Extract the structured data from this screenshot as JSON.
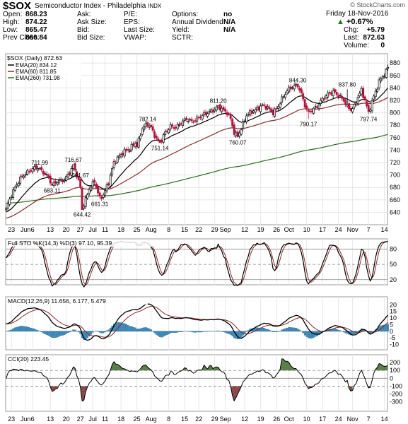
{
  "header": {
    "symbol": "$SOX",
    "name": "Semiconductor Index - Philadelphia",
    "exchange": "INDX",
    "watermark": "© StockCharts.com",
    "date": "Friday   18-Nov-2016",
    "change_pct": "+0.67%",
    "rows": [
      {
        "l1": "Open:",
        "v1": "868.23",
        "l2": "Ask:",
        "v2": "",
        "l3": "P/E:",
        "v3": "",
        "l4": "Options:",
        "v4": "no"
      },
      {
        "l1": "High:",
        "v1": "874.22",
        "l2": "Ask Size:",
        "v2": "",
        "l3": "EPS:",
        "v3": "",
        "l4": "Annual Dividend:",
        "v4": "N/A"
      },
      {
        "l1": "Low:",
        "v1": "865.47",
        "l2": "Bid:",
        "v2": "",
        "l3": "Last Size:",
        "v3": "",
        "l4": "Yield:",
        "v4": "N/A"
      },
      {
        "l1": "Prev Close:",
        "v1": "866.84",
        "l2": "Bid Size:",
        "v2": "",
        "l3": "VWAP:",
        "v3": "",
        "l4": "SCTR:",
        "v4": ""
      }
    ],
    "right": [
      {
        "label": "Chg:",
        "value": "+5.79"
      },
      {
        "label": "Last:",
        "value": "872.63"
      },
      {
        "label": "Volume:",
        "value": "0"
      }
    ]
  },
  "chart_data": [
    {
      "type": "candlestick",
      "title": "$SOX (Daily) 872.63",
      "legend": [
        {
          "name": "EMA(20) 834.12",
          "color": "#000000"
        },
        {
          "name": "EMA(60) 811.85",
          "color": "#8b2c2c"
        },
        {
          "name": "EMA(260) 731.98",
          "color": "#2e6b1e"
        }
      ],
      "ylim": [
        620,
        895
      ],
      "yticks": [
        640,
        660,
        680,
        700,
        720,
        740,
        760,
        780,
        800,
        820,
        840,
        860,
        880
      ],
      "x_labels": [
        {
          "d": 3,
          "t": "23"
        },
        {
          "d": 11,
          "t": "Jun"
        },
        {
          "d": 15,
          "t": "6"
        },
        {
          "d": 25,
          "t": "13"
        },
        {
          "d": 34,
          "t": "20"
        },
        {
          "d": 42,
          "t": "27"
        },
        {
          "d": 49,
          "t": "Jul"
        },
        {
          "d": 56,
          "t": "11"
        },
        {
          "d": 65,
          "t": "18"
        },
        {
          "d": 74,
          "t": "25"
        },
        {
          "d": 82,
          "t": "Aug"
        },
        {
          "d": 92,
          "t": "8"
        },
        {
          "d": 101,
          "t": "15"
        },
        {
          "d": 109,
          "t": "22"
        },
        {
          "d": 118,
          "t": "29"
        },
        {
          "d": 124,
          "t": "Sep"
        },
        {
          "d": 135,
          "t": "12"
        },
        {
          "d": 144,
          "t": "19"
        },
        {
          "d": 153,
          "t": "26"
        },
        {
          "d": 160,
          "t": "Oct"
        },
        {
          "d": 170,
          "t": "10"
        },
        {
          "d": 179,
          "t": "17"
        },
        {
          "d": 188,
          "t": "24"
        },
        {
          "d": 196,
          "t": "Nov"
        },
        {
          "d": 205,
          "t": "7"
        },
        {
          "d": 214,
          "t": "14"
        }
      ],
      "anchors": [
        [
          0,
          646
        ],
        [
          3,
          668
        ],
        [
          6,
          685
        ],
        [
          9,
          698
        ],
        [
          12,
          704
        ],
        [
          15,
          710
        ],
        [
          18,
          712
        ],
        [
          21,
          704
        ],
        [
          24,
          696
        ],
        [
          26,
          683
        ],
        [
          28,
          688
        ],
        [
          30,
          690
        ],
        [
          33,
          692
        ],
        [
          36,
          704
        ],
        [
          38,
          715
        ],
        [
          40,
          700
        ],
        [
          42,
          680
        ],
        [
          43,
          645
        ],
        [
          45,
          660
        ],
        [
          47,
          678
        ],
        [
          50,
          690
        ],
        [
          53,
          662
        ],
        [
          55,
          668
        ],
        [
          58,
          688
        ],
        [
          61,
          720
        ],
        [
          64,
          730
        ],
        [
          67,
          738
        ],
        [
          70,
          742
        ],
        [
          73,
          752
        ],
        [
          74,
          746
        ],
        [
          77,
          775
        ],
        [
          80,
          782
        ],
        [
          82,
          776
        ],
        [
          85,
          758
        ],
        [
          87,
          752
        ],
        [
          90,
          768
        ],
        [
          93,
          778
        ],
        [
          96,
          776
        ],
        [
          99,
          784
        ],
        [
          102,
          790
        ],
        [
          105,
          786
        ],
        [
          108,
          790
        ],
        [
          111,
          796
        ],
        [
          114,
          800
        ],
        [
          117,
          804
        ],
        [
          120,
          810
        ],
        [
          122,
          806
        ],
        [
          125,
          800
        ],
        [
          127,
          790
        ],
        [
          129,
          768
        ],
        [
          131,
          762
        ],
        [
          133,
          775
        ],
        [
          136,
          796
        ],
        [
          139,
          802
        ],
        [
          142,
          806
        ],
        [
          145,
          812
        ],
        [
          148,
          808
        ],
        [
          151,
          800
        ],
        [
          153,
          806
        ],
        [
          156,
          822
        ],
        [
          159,
          836
        ],
        [
          162,
          842
        ],
        [
          165,
          844
        ],
        [
          167,
          830
        ],
        [
          169,
          812
        ],
        [
          171,
          800
        ],
        [
          173,
          804
        ],
        [
          176,
          810
        ],
        [
          179,
          822
        ],
        [
          182,
          830
        ],
        [
          185,
          834
        ],
        [
          188,
          828
        ],
        [
          191,
          820
        ],
        [
          193,
          810
        ],
        [
          195,
          805
        ],
        [
          197,
          810
        ],
        [
          199,
          826
        ],
        [
          201,
          836
        ],
        [
          203,
          820
        ],
        [
          205,
          800
        ],
        [
          207,
          818
        ],
        [
          209,
          834
        ],
        [
          211,
          850
        ],
        [
          213,
          858
        ],
        [
          215,
          866
        ],
        [
          216,
          873
        ]
      ],
      "annotations": [
        {
          "d": 43,
          "v": 644.42,
          "t": "644.42",
          "pos": "below"
        },
        {
          "d": 38,
          "v": 716.67,
          "t": "716.67",
          "pos": "above"
        },
        {
          "d": 19,
          "v": 711.99,
          "t": "711.99",
          "pos": "above"
        },
        {
          "d": 26,
          "v": 683.11,
          "t": "683.11",
          "pos": "below"
        },
        {
          "d": 42,
          "v": 691.67,
          "t": "691.67",
          "pos": "above"
        },
        {
          "d": 53,
          "v": 661.31,
          "t": "661.31",
          "pos": "below"
        },
        {
          "d": 80,
          "v": 782.14,
          "t": "782.14",
          "pos": "above"
        },
        {
          "d": 87,
          "v": 751.14,
          "t": "751.14",
          "pos": "below"
        },
        {
          "d": 120,
          "v": 811.2,
          "t": "811.20",
          "pos": "above"
        },
        {
          "d": 131,
          "v": 760.07,
          "t": "760.07",
          "pos": "below"
        },
        {
          "d": 165,
          "v": 844.3,
          "t": "844.30",
          "pos": "above"
        },
        {
          "d": 171,
          "v": 790.17,
          "t": "790.17",
          "pos": "below"
        },
        {
          "d": 193,
          "v": 837.8,
          "t": "837.80",
          "pos": "above"
        },
        {
          "d": 205,
          "v": 797.74,
          "t": "797.74",
          "pos": "below"
        }
      ]
    },
    {
      "type": "line",
      "title": "Full STO %K(14,3) %D(3) 97.10, 95.39",
      "ylim": [
        10,
        100
      ],
      "yticks": [
        20,
        50,
        80
      ],
      "series": [
        {
          "name": "%K(14,3)",
          "values": "computed"
        },
        {
          "name": "%D(3)",
          "values": "computed"
        }
      ]
    },
    {
      "type": "line",
      "title": "MACD(12,26,9) 11.656, 6.177, 5.479",
      "ylim": [
        -14,
        26
      ],
      "yticks": [
        -10,
        -5,
        0,
        5,
        10,
        15,
        20
      ],
      "series": [
        {
          "name": "MACD(12,26,9)",
          "values": "computed"
        },
        {
          "name": "signal",
          "values": "computed"
        },
        {
          "name": "histogram",
          "values": "computed"
        }
      ]
    },
    {
      "type": "area",
      "title": "CCI(20) 223.45",
      "ylim": [
        -420,
        300
      ],
      "yticks": [
        -300,
        -200,
        -100,
        0,
        100,
        200
      ]
    }
  ],
  "styles": {
    "up_color": "#000000",
    "down_color": "#b0143c",
    "ema20_color": "#000000",
    "ema60_color": "#8b2c2c",
    "ema260_color": "#2e6b1e",
    "macd_hist_color": "#3f8fc0",
    "cci_fill_color": "#5b7f4a",
    "cci_neg_fill_color": "#8b4a4a",
    "change_color": "#1a7a1a"
  }
}
